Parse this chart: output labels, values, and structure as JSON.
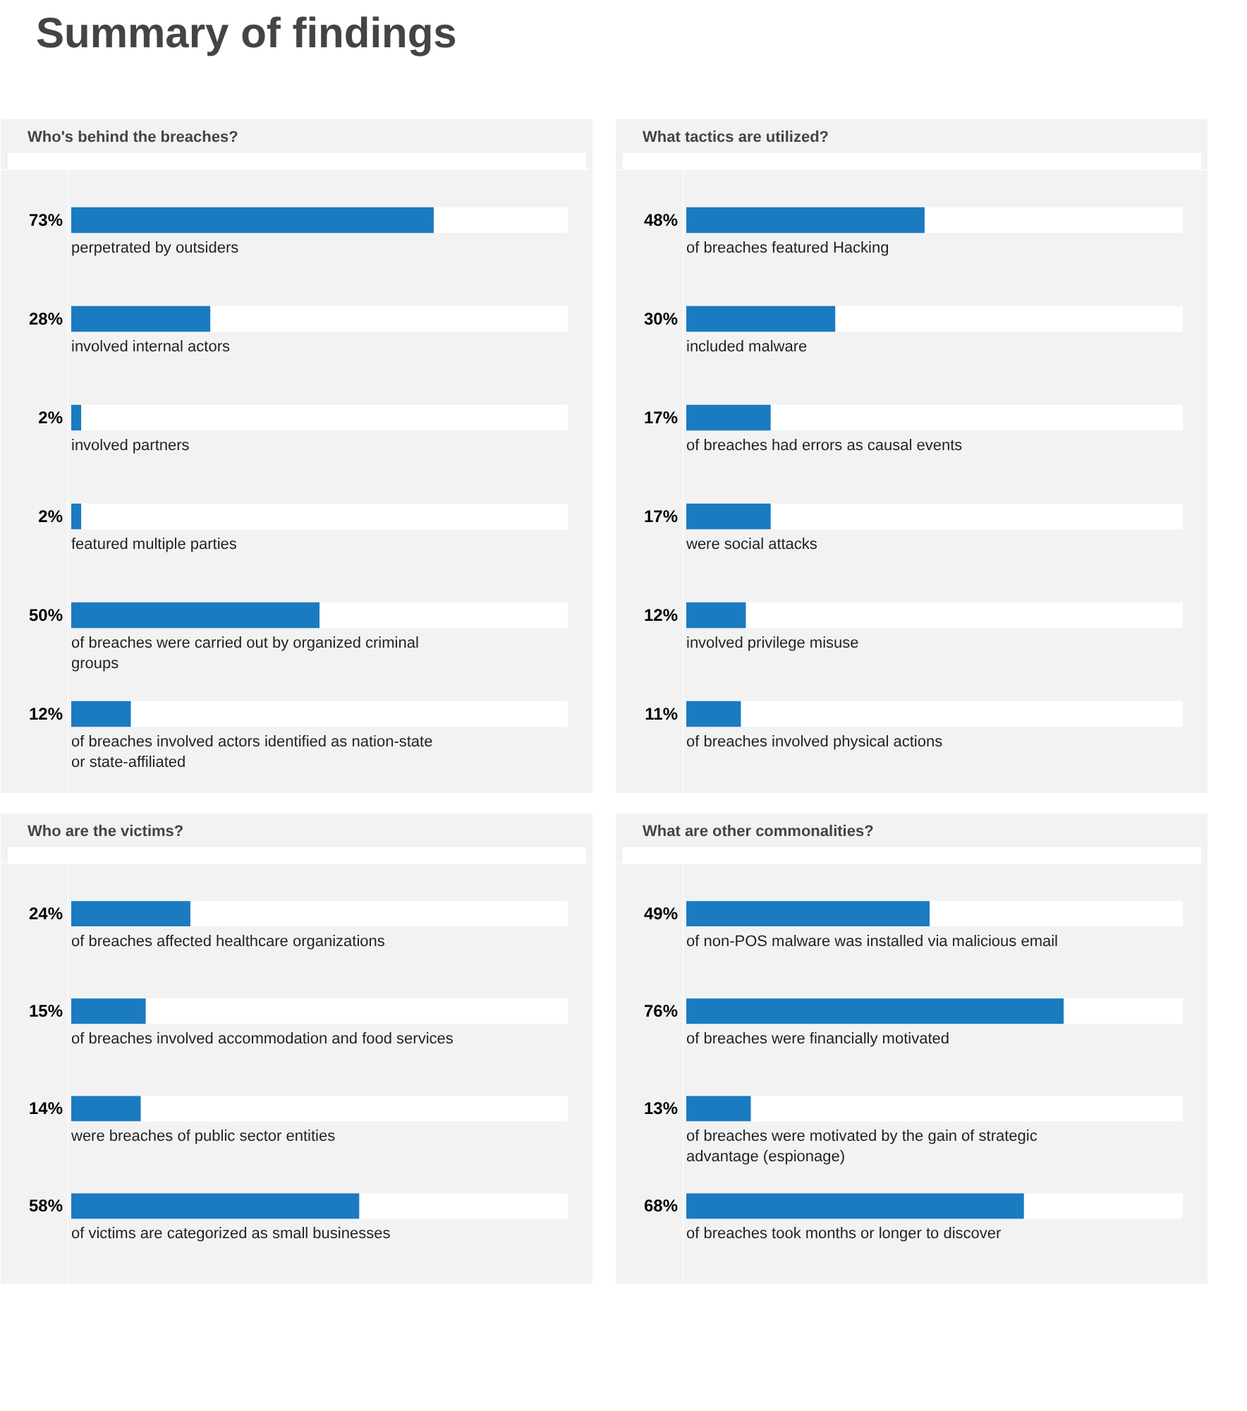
{
  "chart_data": [
    {
      "type": "other",
      "title": "Summary of findings"
    },
    {
      "type": "bar",
      "orientation": "horizontal",
      "title": "Who's behind the breaches?",
      "categories": [
        "perpetrated by outsiders",
        "involved internal actors",
        "involved partners",
        "featured multiple parties",
        "of breaches were carried out by organized criminal groups",
        "of breaches involved actors identified as nation-state or state-affiliated"
      ],
      "values": [
        73,
        28,
        2,
        2,
        50,
        12
      ],
      "value_labels": [
        "73%",
        "28%",
        "2%",
        "2%",
        "50%",
        "12%"
      ],
      "color": "#1b7bc1",
      "xlim": [
        0,
        100
      ],
      "tick_labels": false,
      "grid": false
    },
    {
      "type": "bar",
      "orientation": "horizontal",
      "title": "What tactics are utilized?",
      "categories": [
        "of breaches featured Hacking",
        "included malware",
        "of breaches had errors as causal events",
        "were social attacks",
        "involved privilege misuse",
        "of breaches involved physical actions"
      ],
      "values": [
        48,
        30,
        17,
        17,
        12,
        11
      ],
      "value_labels": [
        "48%",
        "30%",
        "17%",
        "17%",
        "12%",
        "11%"
      ],
      "color": "#1b7bc1",
      "xlim": [
        0,
        100
      ],
      "tick_labels": false,
      "grid": false
    },
    {
      "type": "bar",
      "orientation": "horizontal",
      "title": "Who are the victims?",
      "categories": [
        "of breaches affected healthcare organizations",
        "of breaches involved accommodation and food services",
        "were breaches of public sector entities",
        "of victims are categorized as small businesses"
      ],
      "values": [
        24,
        15,
        14,
        58
      ],
      "value_labels": [
        "24%",
        "15%",
        "14%",
        "58%"
      ],
      "color": "#1b7bc1",
      "xlim": [
        0,
        100
      ],
      "tick_labels": false,
      "grid": false
    },
    {
      "type": "bar",
      "orientation": "horizontal",
      "title": "What are other commonalities?",
      "categories": [
        "of non-POS malware was installed via malicious email",
        "of breaches were financially motivated",
        "of breaches were motivated by the gain of strategic advantage (espionage)",
        "of breaches took months or longer to discover"
      ],
      "values": [
        49,
        76,
        13,
        68
      ],
      "value_labels": [
        "49%",
        "76%",
        "13%",
        "68%"
      ],
      "color": "#1b7bc1",
      "xlim": [
        0,
        100
      ],
      "tick_labels": false,
      "grid": false
    }
  ]
}
